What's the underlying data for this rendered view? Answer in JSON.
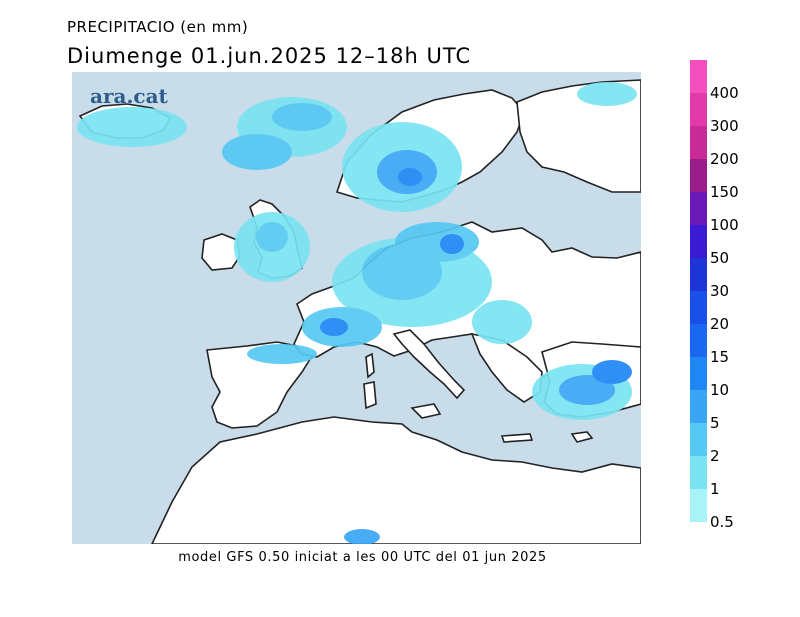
{
  "header": {
    "title": "PRECIPITACIO (en mm)",
    "subtitle": "Diumenge  01.jun.2025  12–18h  UTC"
  },
  "map": {
    "brand": "ara.cat",
    "sea_color": "#c8dce9",
    "land_color": "#ffffff",
    "coast_color": "#222222"
  },
  "footer": {
    "text": "model GFS 0.50 iniciat a les 00 UTC del 01 jun 2025"
  },
  "legend": {
    "title": "",
    "levels": [
      {
        "label": "400",
        "color": "#f54fbf"
      },
      {
        "label": "300",
        "color": "#e23aa8"
      },
      {
        "label": "200",
        "color": "#c82a96"
      },
      {
        "label": "150",
        "color": "#9a1d8a"
      },
      {
        "label": "100",
        "color": "#6a1ab8"
      },
      {
        "label": "50",
        "color": "#3a1ad2"
      },
      {
        "label": "30",
        "color": "#1d34d8"
      },
      {
        "label": "20",
        "color": "#1a4fe8"
      },
      {
        "label": "15",
        "color": "#1a68f2"
      },
      {
        "label": "10",
        "color": "#1e86f5"
      },
      {
        "label": "5",
        "color": "#3aa5f5"
      },
      {
        "label": "2",
        "color": "#55c8f3"
      },
      {
        "label": "1",
        "color": "#7ae3f2"
      },
      {
        "label": "0.5",
        "color": "#a8f3f5"
      }
    ]
  }
}
